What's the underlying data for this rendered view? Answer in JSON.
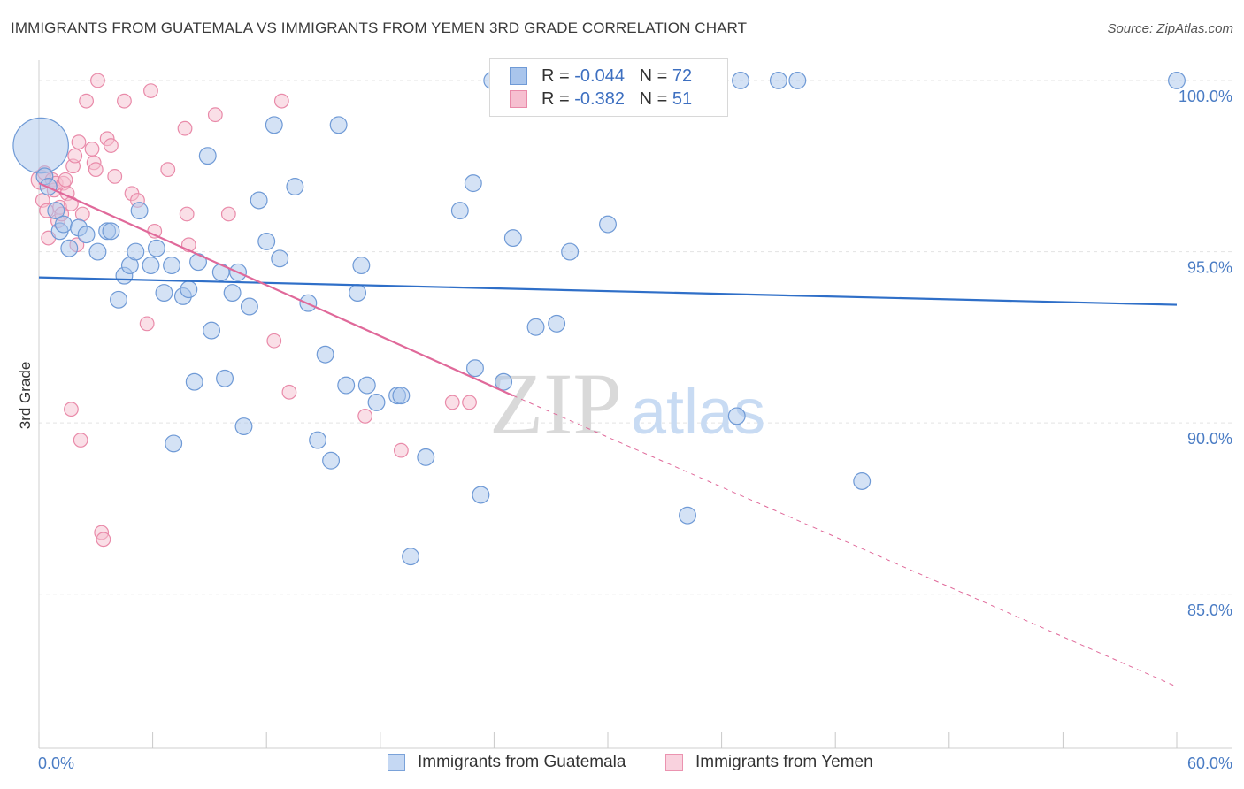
{
  "title": "IMMIGRANTS FROM GUATEMALA VS IMMIGRANTS FROM YEMEN 3RD GRADE CORRELATION CHART",
  "source": "Source: ZipAtlas.com",
  "watermark": {
    "zip": "ZIP",
    "atlas": "atlas"
  },
  "colors": {
    "blue_fill": "#a9c5ec",
    "blue_stroke": "#6f9ad6",
    "blue_line": "#2f6fc8",
    "pink_fill": "#f6bfd0",
    "pink_stroke": "#e98aa9",
    "pink_line": "#e0699a",
    "grid": "#e3e3e3",
    "tick_text": "#4a7cc4"
  },
  "legend": {
    "rows": [
      {
        "r_label": "R = ",
        "r_value": "-0.044",
        "n_label": "N = ",
        "n_value": "72"
      },
      {
        "r_label": "R = ",
        "r_value": "-0.382",
        "n_label": "N = ",
        "n_value": "51"
      }
    ]
  },
  "bottom_legend": {
    "guatemala": "Immigrants from Guatemala",
    "yemen": "Immigrants from Yemen"
  },
  "chart_data": {
    "type": "scatter",
    "title": "IMMIGRANTS FROM GUATEMALA VS IMMIGRANTS FROM YEMEN 3RD GRADE CORRELATION CHART",
    "xlabel": "",
    "ylabel": "3rd Grade",
    "xlim": [
      0,
      60
    ],
    "ylim": [
      80.5,
      100.8
    ],
    "x_tick_labels": [
      "0.0%",
      "60.0%"
    ],
    "y_ticks": [
      85,
      90,
      95,
      100
    ],
    "y_tick_labels": [
      "85.0%",
      "90.0%",
      "95.0%",
      "100.0%"
    ],
    "grid": true,
    "legend_position": "top-center",
    "series": [
      {
        "name": "Immigrants from Guatemala",
        "color": "#a9c5ec",
        "trend": {
          "x0": 0,
          "y0": 94.25,
          "x1": 60,
          "y1": 93.45
        },
        "points": [
          [
            0.1,
            98.1,
            40
          ],
          [
            0.3,
            97.2,
            12
          ],
          [
            0.5,
            96.9,
            12
          ],
          [
            0.9,
            96.2,
            12
          ],
          [
            1.1,
            95.6,
            12
          ],
          [
            1.3,
            95.8,
            12
          ],
          [
            1.6,
            95.1,
            12
          ],
          [
            2.1,
            95.7,
            12
          ],
          [
            2.5,
            95.5,
            12
          ],
          [
            3.1,
            95.0,
            12
          ],
          [
            3.6,
            95.6,
            12
          ],
          [
            3.8,
            95.6,
            12
          ],
          [
            4.2,
            93.6,
            12
          ],
          [
            4.5,
            94.3,
            12
          ],
          [
            4.8,
            94.6,
            12
          ],
          [
            5.1,
            95.0,
            12
          ],
          [
            5.3,
            96.2,
            12
          ],
          [
            5.9,
            94.6,
            12
          ],
          [
            6.2,
            95.1,
            12
          ],
          [
            6.6,
            93.8,
            12
          ],
          [
            7.0,
            94.6,
            12
          ],
          [
            7.1,
            89.4,
            12
          ],
          [
            7.6,
            93.7,
            12
          ],
          [
            7.9,
            93.9,
            12
          ],
          [
            8.2,
            91.2,
            12
          ],
          [
            8.4,
            94.7,
            12
          ],
          [
            8.9,
            97.8,
            12
          ],
          [
            9.1,
            92.7,
            12
          ],
          [
            9.6,
            94.4,
            12
          ],
          [
            9.8,
            91.3,
            12
          ],
          [
            10.2,
            93.8,
            12
          ],
          [
            10.5,
            94.4,
            12
          ],
          [
            10.8,
            89.9,
            12
          ],
          [
            11.1,
            93.4,
            12
          ],
          [
            11.6,
            96.5,
            12
          ],
          [
            12.0,
            95.3,
            12
          ],
          [
            12.4,
            98.7,
            12
          ],
          [
            12.7,
            94.8,
            12
          ],
          [
            13.5,
            96.9,
            12
          ],
          [
            14.2,
            93.5,
            12
          ],
          [
            14.7,
            89.5,
            12
          ],
          [
            15.1,
            92.0,
            12
          ],
          [
            15.4,
            88.9,
            12
          ],
          [
            15.8,
            98.7,
            12
          ],
          [
            16.2,
            91.1,
            12
          ],
          [
            16.8,
            93.8,
            12
          ],
          [
            17.0,
            94.6,
            12
          ],
          [
            17.3,
            91.1,
            12
          ],
          [
            17.8,
            90.6,
            12
          ],
          [
            18.9,
            90.8,
            12
          ],
          [
            19.1,
            90.8,
            12
          ],
          [
            19.6,
            86.1,
            12
          ],
          [
            20.4,
            89.0,
            12
          ],
          [
            22.2,
            96.2,
            12
          ],
          [
            22.9,
            97.0,
            12
          ],
          [
            23.0,
            91.6,
            12
          ],
          [
            23.3,
            87.9,
            12
          ],
          [
            23.9,
            100.0,
            12
          ],
          [
            24.5,
            91.2,
            12
          ],
          [
            24.9,
            100.0,
            12
          ],
          [
            25.0,
            95.4,
            12
          ],
          [
            26.2,
            92.8,
            12
          ],
          [
            27.3,
            92.9,
            12
          ],
          [
            28.0,
            95.0,
            12
          ],
          [
            30.0,
            95.8,
            12
          ],
          [
            34.2,
            87.3,
            12
          ],
          [
            36.8,
            90.2,
            12
          ],
          [
            37.0,
            100.0,
            12
          ],
          [
            39.0,
            100.0,
            12
          ],
          [
            40.0,
            100.0,
            12
          ],
          [
            43.4,
            88.3,
            12
          ],
          [
            60.0,
            100.0,
            12
          ]
        ]
      },
      {
        "name": "Immigrants from Yemen",
        "color": "#f6bfd0",
        "trend": {
          "x0": 0,
          "y0": 97.0,
          "x1": 25,
          "y1": 90.8,
          "dash_x1": 60,
          "dash_y1": 82.3
        },
        "points": [
          [
            0.1,
            97.1,
            14
          ],
          [
            0.2,
            96.5,
            10
          ],
          [
            0.3,
            97.3,
            10
          ],
          [
            0.4,
            96.2,
            10
          ],
          [
            0.5,
            95.4,
            10
          ],
          [
            0.7,
            97.1,
            10
          ],
          [
            0.8,
            96.8,
            10
          ],
          [
            0.9,
            97.0,
            10
          ],
          [
            1.0,
            95.9,
            10
          ],
          [
            1.1,
            96.3,
            10
          ],
          [
            1.2,
            96.1,
            10
          ],
          [
            1.3,
            97.0,
            10
          ],
          [
            1.4,
            97.1,
            10
          ],
          [
            1.5,
            96.7,
            10
          ],
          [
            1.7,
            96.4,
            10
          ],
          [
            1.8,
            97.5,
            10
          ],
          [
            1.9,
            97.8,
            10
          ],
          [
            2.0,
            95.2,
            10
          ],
          [
            2.1,
            98.2,
            10
          ],
          [
            2.3,
            96.1,
            10
          ],
          [
            1.7,
            90.4,
            10
          ],
          [
            2.2,
            89.5,
            10
          ],
          [
            2.5,
            99.4,
            10
          ],
          [
            2.8,
            98.0,
            10
          ],
          [
            2.9,
            97.6,
            10
          ],
          [
            3.0,
            97.4,
            10
          ],
          [
            3.1,
            100.0,
            10
          ],
          [
            3.3,
            86.8,
            10
          ],
          [
            3.4,
            86.6,
            10
          ],
          [
            3.6,
            98.3,
            10
          ],
          [
            3.8,
            98.1,
            10
          ],
          [
            4.0,
            97.2,
            10
          ],
          [
            4.5,
            99.4,
            10
          ],
          [
            4.9,
            96.7,
            10
          ],
          [
            5.2,
            96.5,
            10
          ],
          [
            5.7,
            92.9,
            10
          ],
          [
            5.9,
            99.7,
            10
          ],
          [
            6.1,
            95.6,
            10
          ],
          [
            6.8,
            97.4,
            10
          ],
          [
            7.7,
            98.6,
            10
          ],
          [
            7.8,
            96.1,
            10
          ],
          [
            7.9,
            95.2,
            10
          ],
          [
            9.3,
            99.0,
            10
          ],
          [
            10.0,
            96.1,
            10
          ],
          [
            12.4,
            92.4,
            10
          ],
          [
            12.8,
            99.4,
            10
          ],
          [
            13.2,
            90.9,
            10
          ],
          [
            17.2,
            90.2,
            10
          ],
          [
            19.1,
            89.2,
            10
          ],
          [
            21.8,
            90.6,
            10
          ],
          [
            22.7,
            90.6,
            10
          ]
        ]
      }
    ]
  }
}
